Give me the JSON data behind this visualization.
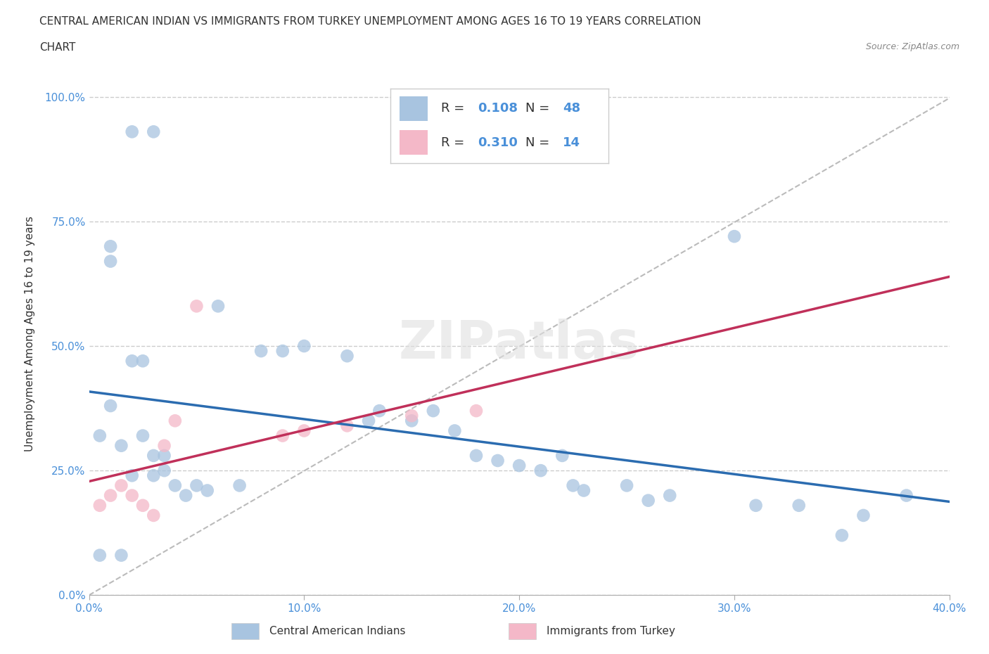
{
  "title_line1": "CENTRAL AMERICAN INDIAN VS IMMIGRANTS FROM TURKEY UNEMPLOYMENT AMONG AGES 16 TO 19 YEARS CORRELATION",
  "title_line2": "CHART",
  "source_text": "Source: ZipAtlas.com",
  "ylabel": "Unemployment Among Ages 16 to 19 years",
  "xmin": 0.0,
  "xmax": 0.4,
  "ymin": 0.0,
  "ymax": 1.05,
  "yticks": [
    0.0,
    0.25,
    0.5,
    0.75,
    1.0
  ],
  "ytick_labels": [
    "0.0%",
    "25.0%",
    "50.0%",
    "75.0%",
    "100.0%"
  ],
  "xticks": [
    0.0,
    0.1,
    0.2,
    0.3,
    0.4
  ],
  "xtick_labels": [
    "0.0%",
    "10.0%",
    "20.0%",
    "30.0%",
    "40.0%"
  ],
  "blue_R": 0.108,
  "blue_N": 48,
  "pink_R": 0.31,
  "pink_N": 14,
  "blue_color": "#a8c4e0",
  "blue_line_color": "#2b6cb0",
  "pink_color": "#f4b8c8",
  "pink_line_color": "#c0305a",
  "grid_color": "#cccccc",
  "background_color": "#ffffff",
  "tick_label_color": "#4a90d9",
  "title_color": "#333333",
  "blue_scatter_x": [
    0.02,
    0.03,
    0.01,
    0.01,
    0.02,
    0.025,
    0.01,
    0.005,
    0.015,
    0.025,
    0.03,
    0.035,
    0.02,
    0.03,
    0.035,
    0.04,
    0.045,
    0.05,
    0.055,
    0.06,
    0.08,
    0.09,
    0.1,
    0.12,
    0.135,
    0.15,
    0.16,
    0.17,
    0.18,
    0.19,
    0.2,
    0.21,
    0.22,
    0.225,
    0.23,
    0.25,
    0.26,
    0.27,
    0.3,
    0.31,
    0.33,
    0.35,
    0.36,
    0.38,
    0.07,
    0.13,
    0.005,
    0.015
  ],
  "blue_scatter_y": [
    0.93,
    0.93,
    0.7,
    0.67,
    0.47,
    0.47,
    0.38,
    0.32,
    0.3,
    0.32,
    0.28,
    0.28,
    0.24,
    0.24,
    0.25,
    0.22,
    0.2,
    0.22,
    0.21,
    0.58,
    0.49,
    0.49,
    0.5,
    0.48,
    0.37,
    0.35,
    0.37,
    0.33,
    0.28,
    0.27,
    0.26,
    0.25,
    0.28,
    0.22,
    0.21,
    0.22,
    0.19,
    0.2,
    0.72,
    0.18,
    0.18,
    0.12,
    0.16,
    0.2,
    0.22,
    0.35,
    0.08,
    0.08
  ],
  "pink_scatter_x": [
    0.005,
    0.01,
    0.015,
    0.02,
    0.025,
    0.03,
    0.035,
    0.04,
    0.05,
    0.09,
    0.1,
    0.12,
    0.15,
    0.18
  ],
  "pink_scatter_y": [
    0.18,
    0.2,
    0.22,
    0.2,
    0.18,
    0.16,
    0.3,
    0.35,
    0.58,
    0.32,
    0.33,
    0.34,
    0.36,
    0.37
  ]
}
